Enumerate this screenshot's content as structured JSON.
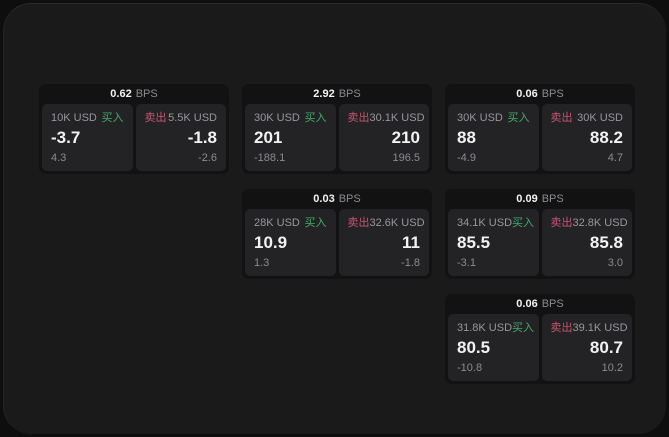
{
  "labels": {
    "bps_unit": "BPS",
    "buy": "买入",
    "sell": "卖出"
  },
  "colors": {
    "page_bg": "#0e0e0f",
    "panel_bg": "#1a1a1b",
    "card_bg": "#121213",
    "tile_bg": "#232326",
    "value_white": "#f2f2f3",
    "muted_gray": "#8b8b90",
    "muted_gray2": "#97979c",
    "buy_green": "#3fae68",
    "sell_red": "#c9536e"
  },
  "cards": [
    {
      "bps": "0.62",
      "grid": {
        "col": 1,
        "row": 1
      },
      "buy": {
        "amount": "10K USD",
        "value": "-3.7",
        "delta": "4.3"
      },
      "sell": {
        "amount": "5.5K USD",
        "value": "-1.8",
        "delta": "-2.6"
      }
    },
    {
      "bps": "2.92",
      "grid": {
        "col": 2,
        "row": 1
      },
      "buy": {
        "amount": "30K USD",
        "value": "201",
        "delta": "-188.1"
      },
      "sell": {
        "amount": "30.1K USD",
        "value": "210",
        "delta": "196.5"
      }
    },
    {
      "bps": "0.06",
      "grid": {
        "col": 3,
        "row": 1
      },
      "buy": {
        "amount": "30K USD",
        "value": "88",
        "delta": "-4.9"
      },
      "sell": {
        "amount": "30K USD",
        "value": "88.2",
        "delta": "4.7"
      }
    },
    {
      "bps": "0.03",
      "grid": {
        "col": 2,
        "row": 2
      },
      "buy": {
        "amount": "28K USD",
        "value": "10.9",
        "delta": "1.3"
      },
      "sell": {
        "amount": "32.6K USD",
        "value": "11",
        "delta": "-1.8"
      }
    },
    {
      "bps": "0.09",
      "grid": {
        "col": 3,
        "row": 2
      },
      "buy": {
        "amount": "34.1K USD",
        "value": "85.5",
        "delta": "-3.1"
      },
      "sell": {
        "amount": "32.8K USD",
        "value": "85.8",
        "delta": "3.0"
      }
    },
    {
      "bps": "0.06",
      "grid": {
        "col": 3,
        "row": 3
      },
      "buy": {
        "amount": "31.8K USD",
        "value": "80.5",
        "delta": "-10.8"
      },
      "sell": {
        "amount": "39.1K USD",
        "value": "80.7",
        "delta": "10.2"
      }
    }
  ]
}
